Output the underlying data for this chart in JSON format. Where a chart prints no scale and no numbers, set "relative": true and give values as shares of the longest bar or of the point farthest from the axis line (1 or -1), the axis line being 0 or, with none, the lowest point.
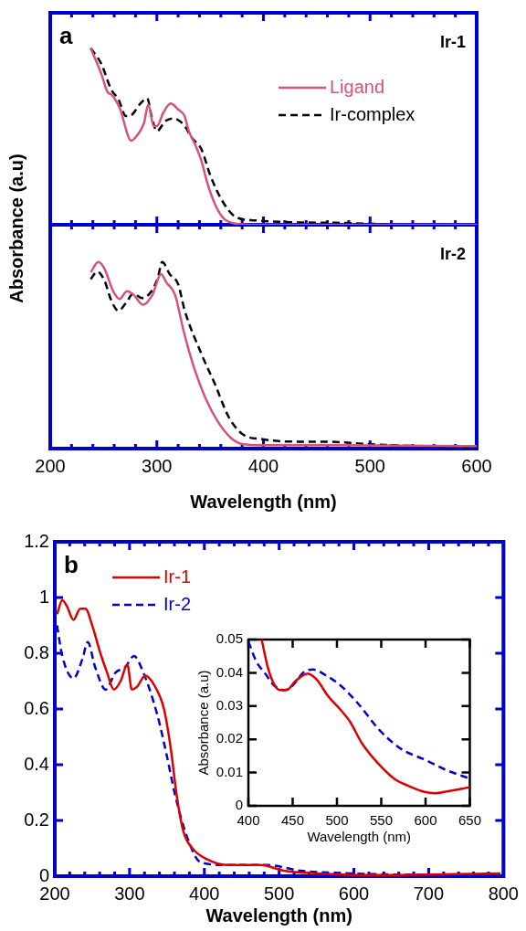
{
  "chart_data": [
    {
      "type": "line",
      "title": "a",
      "annotations": [
        "Ir-1"
      ],
      "ylabel": "Absorbance (a.u)",
      "relative": true,
      "legend": "top right",
      "tick_labels": false,
      "xlim": [
        200,
        600
      ],
      "xticks": [
        200,
        {
          "value": 220,
          "label": null
        },
        {
          "value": 240,
          "label": null
        },
        {
          "value": 260,
          "label": null
        },
        {
          "value": 280,
          "label": null
        },
        300,
        {
          "value": 320,
          "label": null
        },
        {
          "value": 340,
          "label": null
        },
        {
          "value": 360,
          "label": null
        },
        {
          "value": 380,
          "label": null
        },
        400,
        {
          "value": 420,
          "label": null
        },
        {
          "value": 440,
          "label": null
        },
        {
          "value": 460,
          "label": null
        },
        {
          "value": 480,
          "label": null
        },
        500,
        {
          "value": 520,
          "label": null
        },
        {
          "value": 540,
          "label": null
        },
        {
          "value": 560,
          "label": null
        },
        {
          "value": 580,
          "label": null
        },
        600
      ],
      "series": [
        {
          "name": "Ligand",
          "color": "#d9507a",
          "line_style": "solid",
          "x": [
            238,
            248,
            254,
            257,
            265,
            276,
            282,
            288,
            292,
            297,
            300,
            306,
            313,
            320,
            326,
            330,
            336,
            342,
            347,
            355,
            363,
            374,
            389,
            600
          ],
          "values": [
            1,
            0.853,
            0.749,
            0.739,
            0.663,
            0.476,
            0.51,
            0.577,
            0.682,
            0.558,
            0.558,
            0.634,
            0.686,
            0.653,
            0.615,
            0.53,
            0.453,
            0.358,
            0.244,
            0.11,
            0.034,
            0.006,
            0,
            0
          ]
        },
        {
          "name": "Ir-complex",
          "color": "#000000",
          "line_style": "dashed",
          "x": [
            238,
            248,
            257,
            264,
            271,
            277,
            284,
            291,
            295,
            300,
            308,
            315,
            325,
            333,
            342,
            350,
            361,
            374,
            392,
            421,
            468,
            499,
            531,
            600
          ],
          "values": [
            1,
            0.91,
            0.768,
            0.71,
            0.615,
            0.625,
            0.682,
            0.716,
            0.615,
            0.53,
            0.587,
            0.602,
            0.568,
            0.491,
            0.425,
            0.282,
            0.139,
            0.044,
            0.025,
            0.015,
            0.011,
            0.006,
            0,
            0
          ]
        }
      ]
    },
    {
      "type": "line",
      "annotations": [
        "Ir-2"
      ],
      "xlabel": "Wavelength (nm)",
      "relative": true,
      "tick_labels": "x",
      "xlim": [
        200,
        600
      ],
      "xticks": [
        200,
        {
          "value": 220,
          "label": null
        },
        {
          "value": 240,
          "label": null
        },
        {
          "value": 260,
          "label": null
        },
        {
          "value": 280,
          "label": null
        },
        300,
        {
          "value": 320,
          "label": null
        },
        {
          "value": 340,
          "label": null
        },
        {
          "value": 360,
          "label": null
        },
        {
          "value": 380,
          "label": null
        },
        400,
        {
          "value": 420,
          "label": null
        },
        {
          "value": 440,
          "label": null
        },
        {
          "value": 460,
          "label": null
        },
        {
          "value": 480,
          "label": null
        },
        500,
        {
          "value": 520,
          "label": null
        },
        {
          "value": 540,
          "label": null
        },
        {
          "value": 560,
          "label": null
        },
        {
          "value": 580,
          "label": null
        },
        600
      ],
      "series": [
        {
          "color": "#d9507a",
          "line_style": "solid",
          "x": [
            238,
            245,
            251,
            259,
            265,
            272,
            278,
            287,
            296,
            304,
            309,
            317,
            325,
            334,
            346,
            358,
            370,
            380,
            399,
            458,
            600
          ],
          "values": [
            0.945,
            1,
            0.963,
            0.844,
            0.802,
            0.844,
            0.826,
            0.771,
            0.826,
            0.936,
            0.89,
            0.826,
            0.633,
            0.45,
            0.266,
            0.138,
            0.055,
            0.024,
            0.018,
            0.018,
            0.013
          ]
        },
        {
          "color": "#000000",
          "line_style": "dashed",
          "x": [
            238,
            244,
            251,
            257,
            264,
            271,
            278,
            286,
            295,
            301,
            305,
            312,
            320,
            326,
            342,
            355,
            367,
            380,
            399,
            436,
            458,
            499,
            547,
            600
          ],
          "values": [
            0.908,
            0.949,
            0.899,
            0.798,
            0.739,
            0.78,
            0.831,
            0.807,
            0.844,
            0.917,
            1,
            0.936,
            0.881,
            0.743,
            0.505,
            0.339,
            0.174,
            0.079,
            0.05,
            0.037,
            0.037,
            0.024,
            0.013,
            0.006
          ]
        }
      ]
    },
    {
      "type": "line",
      "title": "b",
      "xlabel": "Wavelength (nm)",
      "legend": "top left",
      "xlim": [
        200,
        800
      ],
      "xticks": [
        200,
        {
          "value": 220,
          "label": null
        },
        {
          "value": 240,
          "label": null
        },
        {
          "value": 260,
          "label": null
        },
        {
          "value": 280,
          "label": null
        },
        300,
        {
          "value": 320,
          "label": null
        },
        {
          "value": 340,
          "label": null
        },
        {
          "value": 360,
          "label": null
        },
        {
          "value": 380,
          "label": null
        },
        400,
        {
          "value": 420,
          "label": null
        },
        {
          "value": 440,
          "label": null
        },
        {
          "value": 460,
          "label": null
        },
        {
          "value": 480,
          "label": null
        },
        500,
        {
          "value": 520,
          "label": null
        },
        {
          "value": 540,
          "label": null
        },
        {
          "value": 560,
          "label": null
        },
        {
          "value": 580,
          "label": null
        },
        600,
        {
          "value": 620,
          "label": null
        },
        {
          "value": 640,
          "label": null
        },
        {
          "value": 660,
          "label": null
        },
        {
          "value": 680,
          "label": null
        },
        700,
        {
          "value": 720,
          "label": null
        },
        {
          "value": 740,
          "label": null
        },
        {
          "value": 760,
          "label": null
        },
        {
          "value": 780,
          "label": null
        },
        800
      ],
      "ylim": [
        0,
        1.2
      ],
      "yticks": [
        0,
        0.2,
        0.4,
        0.6,
        0.8,
        1,
        1.2
      ],
      "series": [
        {
          "name": "Ir-1",
          "color": "#dd0000",
          "line_style": "solid",
          "x": [
            203,
            210,
            216,
            225,
            234,
            241,
            250,
            261,
            270,
            279,
            288,
            297,
            303,
            310,
            321,
            332,
            346,
            355,
            363,
            372,
            384,
            404,
            430,
            475,
            506,
            551,
            617,
            796
          ],
          "values": [
            0.94,
            0.99,
            0.97,
            0.92,
            0.96,
            0.96,
            0.9,
            0.8,
            0.73,
            0.67,
            0.7,
            0.76,
            0.67,
            0.68,
            0.72,
            0.69,
            0.6,
            0.46,
            0.29,
            0.16,
            0.1,
            0.06,
            0.04,
            0.04,
            0.02,
            0.01,
            0.004,
            0.01
          ]
        },
        {
          "name": "Ir-2",
          "color": "#0000cc",
          "line_style": "dashed",
          "x": [
            203,
            210,
            225,
            237,
            244,
            254,
            268,
            281,
            294,
            306,
            317,
            337,
            350,
            361,
            377,
            395,
            430,
            484,
            528,
            595,
            662,
            796
          ],
          "values": [
            0.9,
            0.79,
            0.71,
            0.78,
            0.84,
            0.75,
            0.67,
            0.73,
            0.75,
            0.79,
            0.74,
            0.58,
            0.43,
            0.29,
            0.14,
            0.05,
            0.04,
            0.04,
            0.02,
            0.01,
            0.006,
            0.006
          ]
        }
      ]
    },
    {
      "type": "line",
      "xlabel": "Wavelength (nm)",
      "ylabel": "Absorbance (a.u)",
      "xlim": [
        400,
        650
      ],
      "xticks": [
        400,
        450,
        500,
        550,
        600,
        650
      ],
      "ylim": [
        0,
        0.05
      ],
      "yticks": [
        0,
        0.01,
        0.02,
        0.03,
        0.04,
        0.05
      ],
      "series": [
        {
          "color": "#dd0000",
          "line_style": "solid",
          "x": [
            415,
            422,
            429,
            436,
            443,
            453,
            467,
            477,
            490,
            504,
            515,
            528,
            546,
            566,
            580,
            600,
            611,
            624,
            650
          ],
          "values": [
            0.05,
            0.0416,
            0.0366,
            0.0348,
            0.0348,
            0.0375,
            0.0398,
            0.038,
            0.033,
            0.0289,
            0.0252,
            0.0189,
            0.0129,
            0.0079,
            0.0061,
            0.0041,
            0.0038,
            0.0043,
            0.0056
          ]
        },
        {
          "color": "#0000cc",
          "line_style": "dashed",
          "x": [
            400,
            409,
            419,
            429,
            441,
            450,
            463,
            473,
            487,
            504,
            524,
            549,
            573,
            600,
            624,
            650
          ],
          "values": [
            0.0494,
            0.0434,
            0.0398,
            0.0362,
            0.0348,
            0.0362,
            0.0403,
            0.041,
            0.0393,
            0.0362,
            0.0307,
            0.0225,
            0.017,
            0.0138,
            0.0107,
            0.0082
          ]
        }
      ]
    }
  ]
}
